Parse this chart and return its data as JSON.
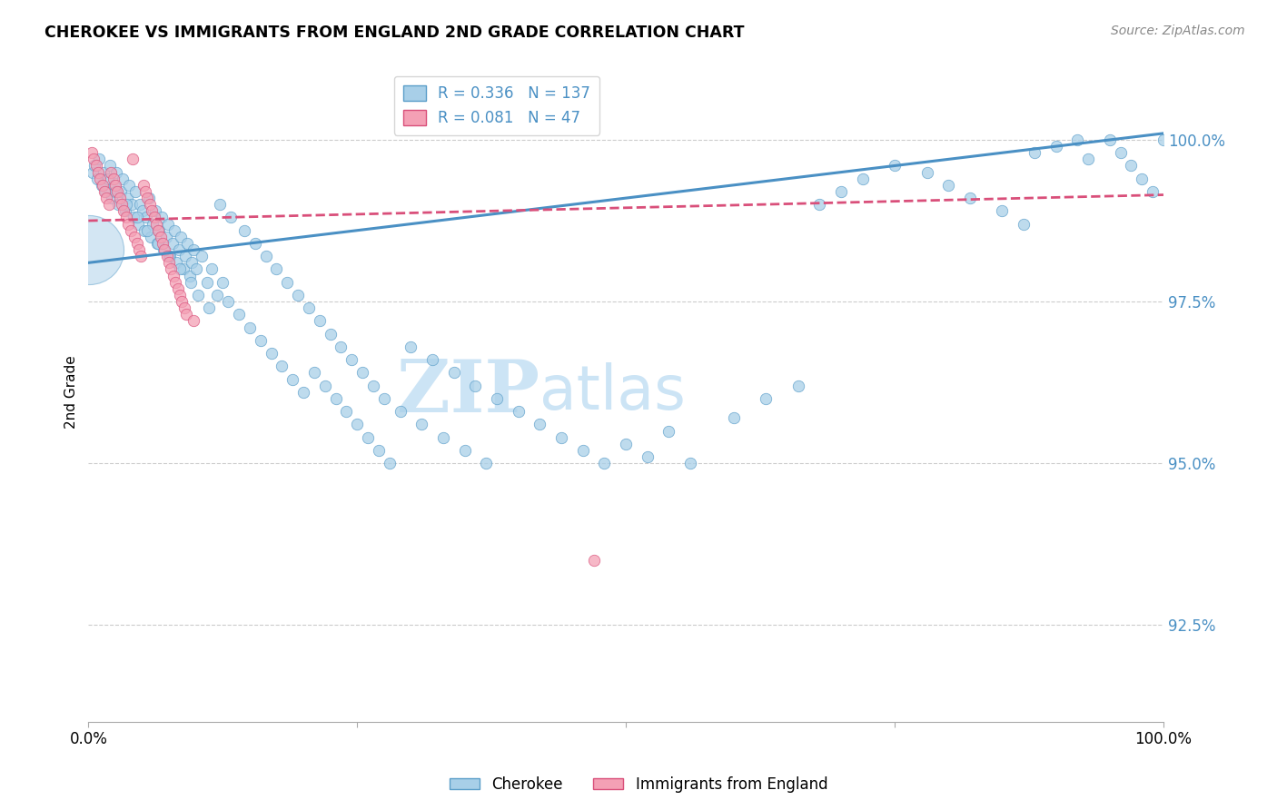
{
  "title": "CHEROKEE VS IMMIGRANTS FROM ENGLAND 2ND GRADE CORRELATION CHART",
  "source_text": "Source: ZipAtlas.com",
  "ylabel": "2nd Grade",
  "ytick_values": [
    92.5,
    95.0,
    97.5,
    100.0
  ],
  "xlim": [
    0.0,
    100.0
  ],
  "ylim": [
    91.0,
    101.2
  ],
  "legend_blue_label": "Cherokee",
  "legend_pink_label": "Immigrants from England",
  "r_blue": 0.336,
  "n_blue": 137,
  "r_pink": 0.081,
  "n_pink": 47,
  "blue_color": "#a8cfe8",
  "pink_color": "#f4a0b5",
  "blue_edge_color": "#5b9ec9",
  "pink_edge_color": "#d94f7a",
  "blue_line_color": "#4a90c4",
  "pink_line_color": "#d94f7a",
  "right_tick_color": "#4a90c4",
  "watermark_zip": "ZIP",
  "watermark_atlas": "atlas",
  "watermark_color": "#cce4f5",
  "blue_trend_x": [
    0,
    100
  ],
  "blue_trend_y": [
    98.1,
    100.1
  ],
  "pink_trend_x": [
    0,
    100
  ],
  "pink_trend_y": [
    98.75,
    99.15
  ],
  "blue_scatter_x": [
    0.4,
    0.6,
    0.8,
    1.0,
    1.2,
    1.4,
    1.6,
    1.8,
    2.0,
    2.2,
    2.4,
    2.6,
    2.8,
    3.0,
    3.2,
    3.4,
    3.6,
    3.8,
    4.0,
    4.2,
    4.4,
    4.6,
    4.8,
    5.0,
    5.2,
    5.4,
    5.6,
    5.8,
    6.0,
    6.2,
    6.4,
    6.6,
    6.8,
    7.0,
    7.2,
    7.4,
    7.6,
    7.8,
    8.0,
    8.2,
    8.4,
    8.6,
    8.8,
    9.0,
    9.2,
    9.4,
    9.6,
    9.8,
    10.0,
    10.5,
    11.0,
    11.5,
    12.0,
    12.5,
    13.0,
    14.0,
    15.0,
    16.0,
    17.0,
    18.0,
    19.0,
    20.0,
    21.0,
    22.0,
    23.0,
    24.0,
    25.0,
    26.0,
    27.0,
    28.0,
    30.0,
    32.0,
    34.0,
    36.0,
    38.0,
    40.0,
    42.0,
    44.0,
    46.0,
    48.0,
    50.0,
    52.0,
    54.0,
    56.0,
    60.0,
    63.0,
    66.0,
    68.0,
    70.0,
    72.0,
    75.0,
    78.0,
    80.0,
    82.0,
    85.0,
    87.0,
    88.0,
    90.0,
    92.0,
    93.0,
    95.0,
    96.0,
    97.0,
    98.0,
    99.0,
    100.0,
    2.5,
    3.5,
    4.5,
    5.5,
    6.5,
    7.5,
    8.5,
    9.5,
    10.2,
    11.2,
    12.2,
    13.2,
    14.5,
    15.5,
    16.5,
    17.5,
    18.5,
    19.5,
    20.5,
    21.5,
    22.5,
    23.5,
    24.5,
    25.5,
    26.5,
    27.5,
    29.0,
    31.0,
    33.0,
    35.0,
    37.0
  ],
  "blue_scatter_y": [
    99.5,
    99.6,
    99.4,
    99.7,
    99.3,
    99.5,
    99.2,
    99.4,
    99.6,
    99.1,
    99.3,
    99.5,
    99.0,
    99.2,
    99.4,
    98.9,
    99.1,
    99.3,
    99.0,
    98.8,
    99.2,
    98.7,
    99.0,
    98.9,
    98.6,
    98.8,
    99.1,
    98.5,
    98.7,
    98.9,
    98.4,
    98.6,
    98.8,
    98.3,
    98.5,
    98.7,
    98.2,
    98.4,
    98.6,
    98.1,
    98.3,
    98.5,
    98.0,
    98.2,
    98.4,
    97.9,
    98.1,
    98.3,
    98.0,
    98.2,
    97.8,
    98.0,
    97.6,
    97.8,
    97.5,
    97.3,
    97.1,
    96.9,
    96.7,
    96.5,
    96.3,
    96.1,
    96.4,
    96.2,
    96.0,
    95.8,
    95.6,
    95.4,
    95.2,
    95.0,
    96.8,
    96.6,
    96.4,
    96.2,
    96.0,
    95.8,
    95.6,
    95.4,
    95.2,
    95.0,
    95.3,
    95.1,
    95.5,
    95.0,
    95.7,
    96.0,
    96.2,
    99.0,
    99.2,
    99.4,
    99.6,
    99.5,
    99.3,
    99.1,
    98.9,
    98.7,
    99.8,
    99.9,
    100.0,
    99.7,
    100.0,
    99.8,
    99.6,
    99.4,
    99.2,
    100.0,
    99.2,
    99.0,
    98.8,
    98.6,
    98.4,
    98.2,
    98.0,
    97.8,
    97.6,
    97.4,
    99.0,
    98.8,
    98.6,
    98.4,
    98.2,
    98.0,
    97.8,
    97.6,
    97.4,
    97.2,
    97.0,
    96.8,
    96.6,
    96.4,
    96.2,
    96.0,
    95.8,
    95.6,
    95.4,
    95.2,
    95.0
  ],
  "pink_scatter_x": [
    0.3,
    0.5,
    0.7,
    0.9,
    1.1,
    1.3,
    1.5,
    1.7,
    1.9,
    2.1,
    2.3,
    2.5,
    2.7,
    2.9,
    3.1,
    3.3,
    3.5,
    3.7,
    3.9,
    4.1,
    4.3,
    4.5,
    4.7,
    4.9,
    5.1,
    5.3,
    5.5,
    5.7,
    5.9,
    6.1,
    6.3,
    6.5,
    6.7,
    6.9,
    7.1,
    7.3,
    7.5,
    7.7,
    7.9,
    8.1,
    8.3,
    8.5,
    8.7,
    8.9,
    9.1,
    9.8,
    47.0
  ],
  "pink_scatter_y": [
    99.8,
    99.7,
    99.6,
    99.5,
    99.4,
    99.3,
    99.2,
    99.1,
    99.0,
    99.5,
    99.4,
    99.3,
    99.2,
    99.1,
    99.0,
    98.9,
    98.8,
    98.7,
    98.6,
    99.7,
    98.5,
    98.4,
    98.3,
    98.2,
    99.3,
    99.2,
    99.1,
    99.0,
    98.9,
    98.8,
    98.7,
    98.6,
    98.5,
    98.4,
    98.3,
    98.2,
    98.1,
    98.0,
    97.9,
    97.8,
    97.7,
    97.6,
    97.5,
    97.4,
    97.3,
    97.2,
    93.5
  ],
  "big_blue_dot_x": 0.05,
  "big_blue_dot_y": 98.3,
  "big_blue_dot_size": 3000,
  "blue_dot_size": 80,
  "pink_dot_size": 80
}
